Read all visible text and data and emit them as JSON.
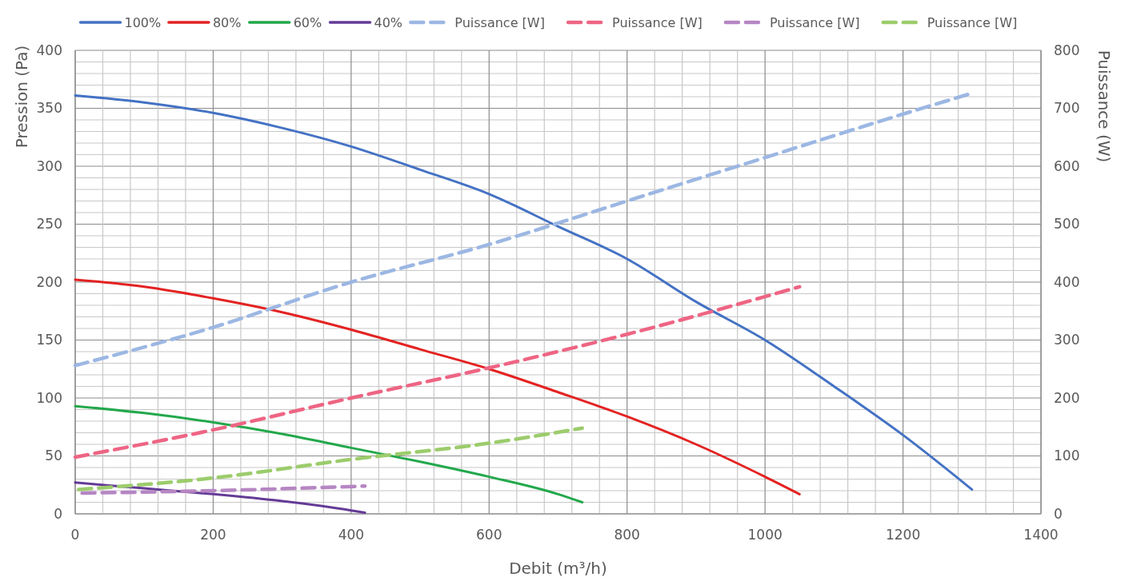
{
  "chart_data": {
    "type": "line",
    "xlabel": "Debit (m³/h)",
    "ylabel": "Pression (Pa)",
    "y2label": "Puissance (W)",
    "legend": "top",
    "grid": true,
    "line_style": "solid",
    "xlim": [
      0,
      1400
    ],
    "ylim": [
      0,
      400
    ],
    "y2lim": [
      0,
      800
    ],
    "xticks": [
      0,
      {
        "value": 40,
        "label": null
      },
      {
        "value": 80,
        "label": null
      },
      {
        "value": 120,
        "label": null
      },
      {
        "value": 160,
        "label": null
      },
      200,
      {
        "value": 240,
        "label": null
      },
      {
        "value": 280,
        "label": null
      },
      {
        "value": 320,
        "label": null
      },
      {
        "value": 360,
        "label": null
      },
      400,
      {
        "value": 440,
        "label": null
      },
      {
        "value": 480,
        "label": null
      },
      {
        "value": 520,
        "label": null
      },
      {
        "value": 560,
        "label": null
      },
      600,
      {
        "value": 640,
        "label": null
      },
      {
        "value": 680,
        "label": null
      },
      {
        "value": 720,
        "label": null
      },
      {
        "value": 760,
        "label": null
      },
      800,
      {
        "value": 840,
        "label": null
      },
      {
        "value": 880,
        "label": null
      },
      {
        "value": 920,
        "label": null
      },
      {
        "value": 960,
        "label": null
      },
      1000,
      {
        "value": 1040,
        "label": null
      },
      {
        "value": 1080,
        "label": null
      },
      {
        "value": 1120,
        "label": null
      },
      {
        "value": 1160,
        "label": null
      },
      1200,
      {
        "value": 1240,
        "label": null
      },
      {
        "value": 1280,
        "label": null
      },
      {
        "value": 1320,
        "label": null
      },
      {
        "value": 1360,
        "label": null
      },
      1400
    ],
    "yticks": [
      0,
      {
        "value": 10,
        "label": null
      },
      {
        "value": 20,
        "label": null
      },
      {
        "value": 30,
        "label": null
      },
      {
        "value": 40,
        "label": null
      },
      50,
      {
        "value": 60,
        "label": null
      },
      {
        "value": 70,
        "label": null
      },
      {
        "value": 80,
        "label": null
      },
      {
        "value": 90,
        "label": null
      },
      100,
      {
        "value": 110,
        "label": null
      },
      {
        "value": 120,
        "label": null
      },
      {
        "value": 130,
        "label": null
      },
      {
        "value": 140,
        "label": null
      },
      150,
      {
        "value": 160,
        "label": null
      },
      {
        "value": 170,
        "label": null
      },
      {
        "value": 180,
        "label": null
      },
      {
        "value": 190,
        "label": null
      },
      200,
      {
        "value": 210,
        "label": null
      },
      {
        "value": 220,
        "label": null
      },
      {
        "value": 230,
        "label": null
      },
      {
        "value": 240,
        "label": null
      },
      250,
      {
        "value": 260,
        "label": null
      },
      {
        "value": 270,
        "label": null
      },
      {
        "value": 280,
        "label": null
      },
      {
        "value": 290,
        "label": null
      },
      300,
      {
        "value": 310,
        "label": null
      },
      {
        "value": 320,
        "label": null
      },
      {
        "value": 330,
        "label": null
      },
      {
        "value": 340,
        "label": null
      },
      350,
      {
        "value": 360,
        "label": null
      },
      {
        "value": 370,
        "label": null
      },
      {
        "value": 380,
        "label": null
      },
      {
        "value": 390,
        "label": null
      },
      400
    ],
    "y2ticks": [
      0,
      100,
      200,
      300,
      400,
      500,
      600,
      700,
      800
    ],
    "series": [
      {
        "name": "100%",
        "color": "#4472c4",
        "x": [
          0,
          100,
          200,
          300,
          400,
          500,
          600,
          700,
          800,
          900,
          1000,
          1100,
          1200,
          1300
        ],
        "values": [
          361,
          355,
          346,
          333,
          317,
          297,
          276,
          248,
          220,
          183,
          150,
          110,
          68,
          21
        ]
      },
      {
        "name": "80%",
        "color": "#e32322",
        "x": [
          0,
          100,
          200,
          300,
          400,
          500,
          600,
          700,
          800,
          900,
          1000,
          1050
        ],
        "values": [
          202,
          196,
          186,
          174,
          159,
          142,
          125,
          105,
          84,
          60,
          32,
          17
        ]
      },
      {
        "name": "60%",
        "color": "#23a84c",
        "x": [
          0,
          100,
          200,
          300,
          400,
          500,
          600,
          700,
          735
        ],
        "values": [
          93,
          87,
          79,
          69,
          57,
          45,
          32,
          17,
          10
        ]
      },
      {
        "name": "40%",
        "color": "#643b96",
        "x": [
          0,
          100,
          200,
          300,
          400,
          420
        ],
        "values": [
          27,
          22,
          17,
          11,
          3,
          1
        ]
      },
      {
        "name": "Puissance [W]",
        "color": "#9cb7e3",
        "axis": "y2",
        "line_style": "dashed",
        "x": [
          0,
          200,
          400,
          600,
          800,
          1000,
          1200,
          1300
        ],
        "values": [
          256,
          322,
          400,
          465,
          540,
          615,
          690,
          726
        ]
      },
      {
        "name": "Puissance [W]",
        "color": "#ee6583",
        "axis": "y2",
        "line_style": "dashed",
        "x": [
          0,
          200,
          400,
          600,
          800,
          1000,
          1050
        ],
        "values": [
          98,
          145,
          200,
          252,
          310,
          375,
          392
        ]
      },
      {
        "name": "Puissance [W]",
        "color": "#b686c3",
        "axis": "y2",
        "line_style": "dashed",
        "x": [
          10,
          200,
          420
        ],
        "values": [
          36,
          40,
          48
        ]
      },
      {
        "name": "Puissance [W]",
        "color": "#9ccc6c",
        "axis": "y2",
        "line_style": "dashed",
        "x": [
          5,
          200,
          400,
          600,
          735
        ],
        "values": [
          42,
          62,
          94,
          122,
          148
        ]
      }
    ]
  }
}
